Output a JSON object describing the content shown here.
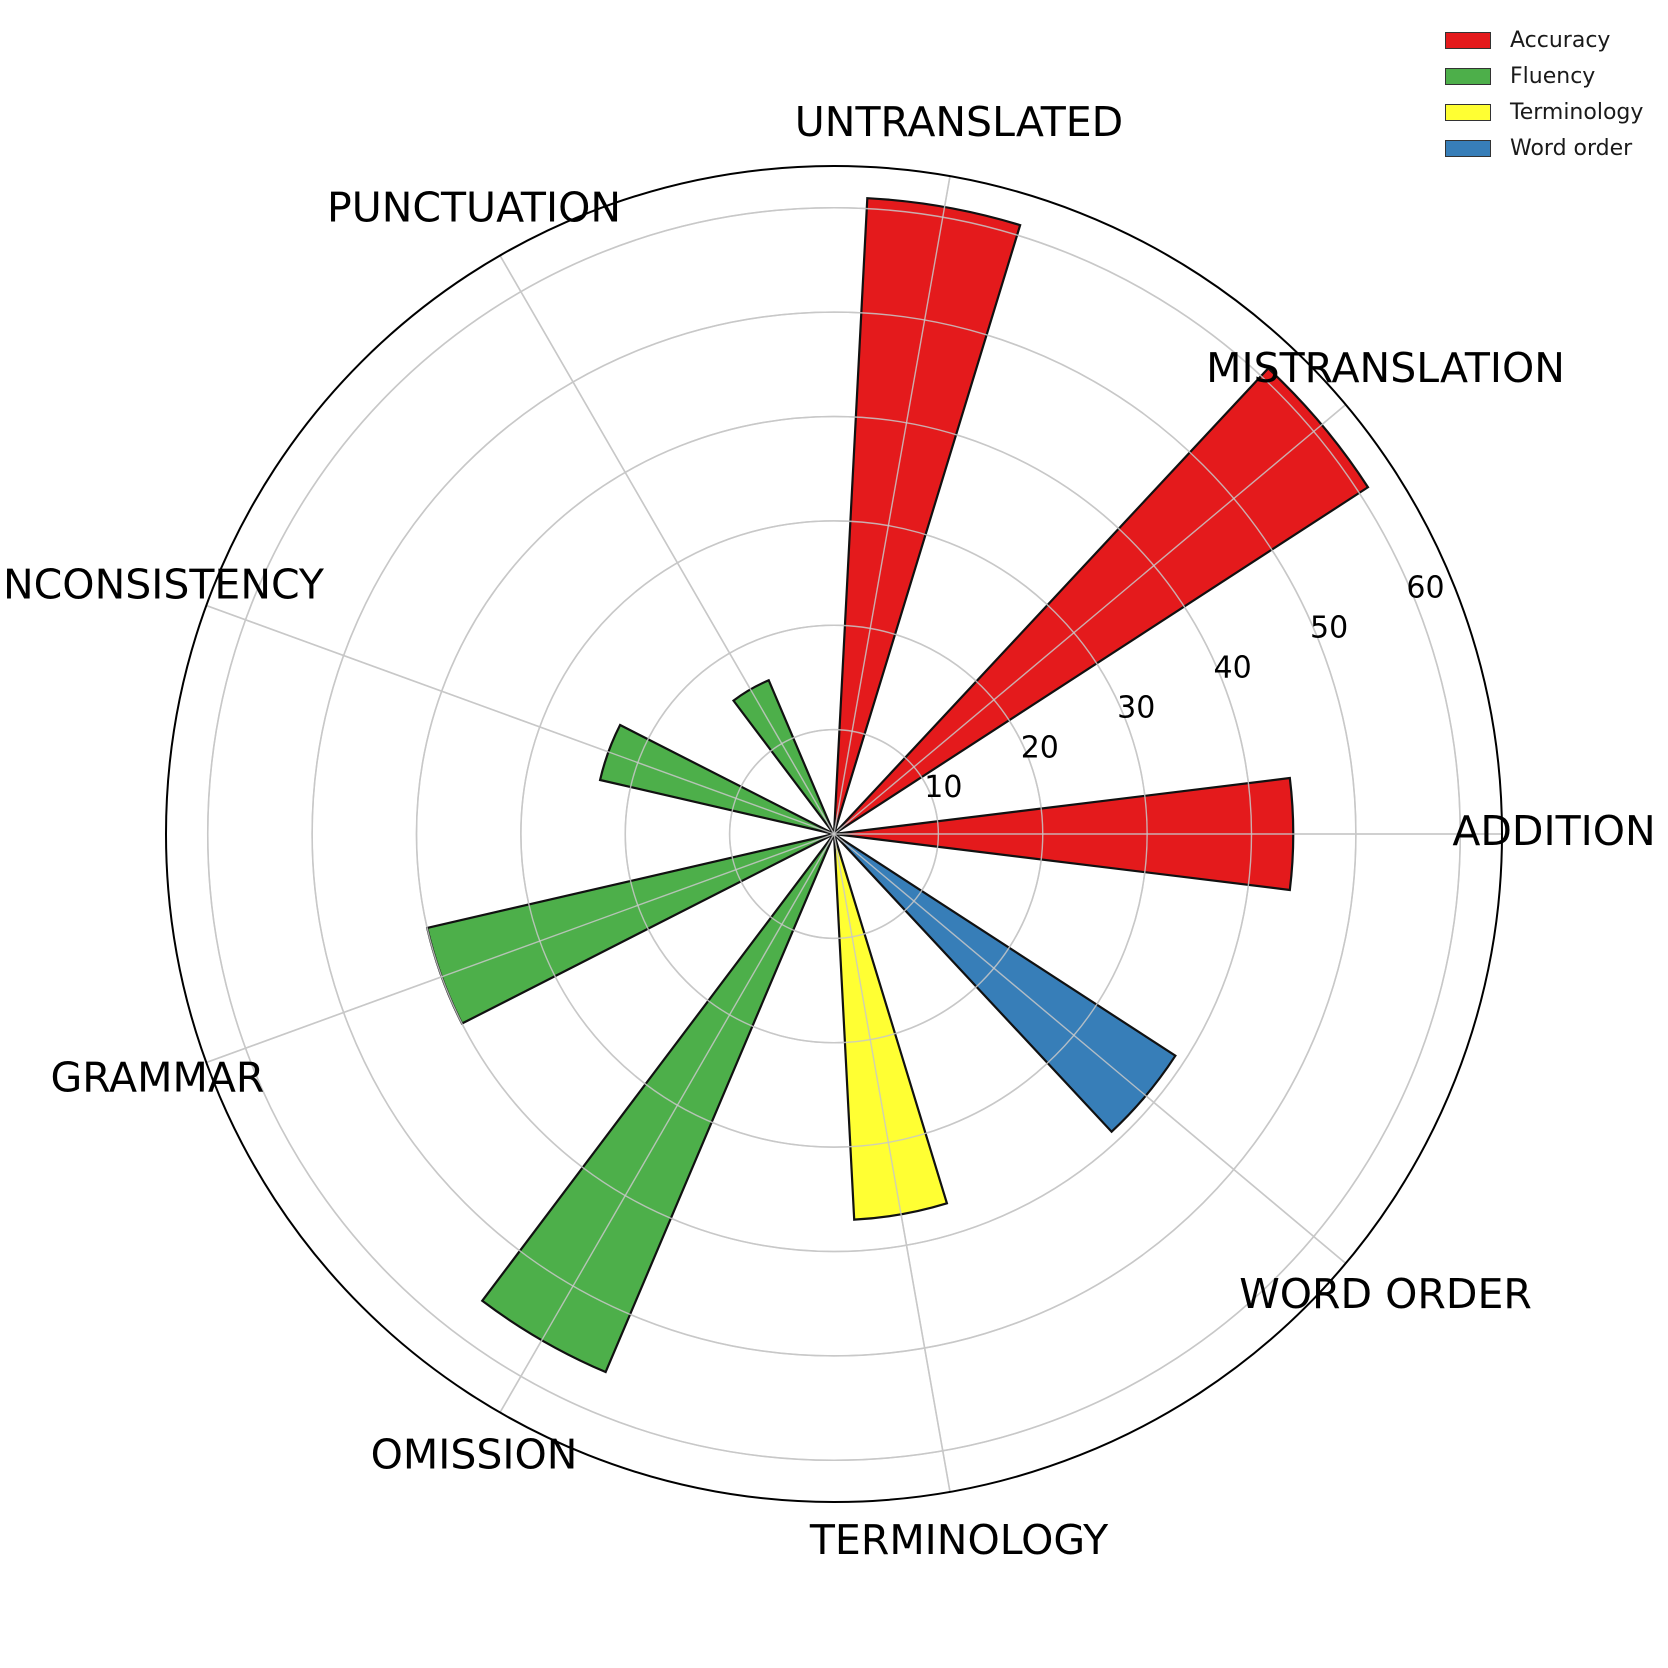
{
  "chart_data": {
    "type": "bar",
    "subtype": "polar",
    "categories": [
      "ADDITION",
      "MISTRANSLATION",
      "UNTRANSLATED",
      "PUNCTUATION",
      "INCONSISTENCY",
      "GRAMMAR",
      "OMISSION",
      "TERMINOLOGY",
      "WORD ORDER"
    ],
    "values": [
      44,
      61,
      61,
      16,
      23,
      40,
      56,
      37,
      39
    ],
    "groups": [
      "Accuracy",
      "Accuracy",
      "Accuracy",
      "Fluency",
      "Fluency",
      "Fluency",
      "Fluency",
      "Terminology",
      "Word order"
    ],
    "rticks": [
      10,
      20,
      30,
      40,
      50,
      60
    ],
    "rlim": [
      0,
      64
    ],
    "grid": true,
    "legend": {
      "position": "top-right",
      "entries": [
        {
          "label": "Accuracy",
          "color": "#e41a1c"
        },
        {
          "label": "Fluency",
          "color": "#4daf4a"
        },
        {
          "label": "Terminology",
          "color": "#ffff33"
        },
        {
          "label": "Word order",
          "color": "#377eb8"
        }
      ]
    }
  }
}
